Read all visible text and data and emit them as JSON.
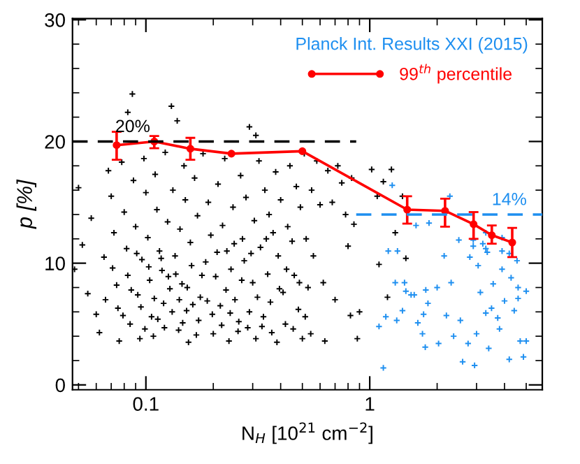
{
  "chart_data": {
    "type": "scatter",
    "xlabel": "N$_{H}$ [10$^{21}$ cm$^{−2}$]",
    "ylabel": "p [%]",
    "log": "x",
    "xlim": [
      0.047,
      5.9
    ],
    "ylim": [
      -0.4,
      30.1
    ],
    "xticks": [
      0.1,
      1
    ],
    "yticks": [
      0,
      10,
      20,
      30
    ],
    "grid": false,
    "legend": "top right",
    "marker": "cross",
    "annotations": [
      "20%",
      "14%"
    ],
    "series": [
      {
        "color": "#000000",
        "x": [
          0.05,
          0.052,
          0.048,
          0.055,
          0.057,
          0.06,
          0.062,
          0.065,
          0.068,
          0.07,
          0.072,
          0.074,
          0.075,
          0.076,
          0.078,
          0.08,
          0.082,
          0.083,
          0.085,
          0.087,
          0.083,
          0.088,
          0.09,
          0.092,
          0.094,
          0.096,
          0.098,
          0.1,
          0.102,
          0.104,
          0.106,
          0.108,
          0.11,
          0.112,
          0.115,
          0.118,
          0.12,
          0.122,
          0.125,
          0.128,
          0.13,
          0.132,
          0.135,
          0.138,
          0.14,
          0.142,
          0.145,
          0.148,
          0.15,
          0.152,
          0.155,
          0.158,
          0.16,
          0.165,
          0.17,
          0.172,
          0.175,
          0.18,
          0.185,
          0.19,
          0.195,
          0.2,
          0.205,
          0.21,
          0.215,
          0.22,
          0.225,
          0.23,
          0.235,
          0.24,
          0.245,
          0.25,
          0.26,
          0.265,
          0.27,
          0.275,
          0.28,
          0.29,
          0.29,
          0.3,
          0.305,
          0.31,
          0.31,
          0.32,
          0.325,
          0.33,
          0.34,
          0.35,
          0.355,
          0.36,
          0.37,
          0.38,
          0.385,
          0.39,
          0.4,
          0.41,
          0.42,
          0.43,
          0.44,
          0.45,
          0.46,
          0.47,
          0.48,
          0.49,
          0.5,
          0.51,
          0.52,
          0.53,
          0.55,
          0.56,
          0.58,
          0.6,
          0.62,
          0.63,
          0.65,
          0.68,
          0.7,
          0.72,
          0.75,
          0.78,
          0.8,
          0.82,
          0.83,
          0.85,
          0.88,
          0.9,
          1.02,
          1.08,
          1.1,
          1.15,
          1.2,
          1.25,
          1.3,
          1.4,
          1.45,
          0.066,
          0.071,
          0.079,
          0.086,
          0.091,
          0.095,
          0.099,
          0.103,
          0.109,
          0.113,
          0.117,
          0.121,
          0.126,
          0.131,
          0.136,
          0.141,
          0.146,
          0.153,
          0.162,
          0.168,
          0.178,
          0.188,
          0.198,
          0.208,
          0.218,
          0.228,
          0.238,
          0.248,
          0.258,
          0.268,
          0.285,
          0.295,
          0.315,
          0.335,
          0.345,
          0.365,
          0.395,
          0.425,
          0.455,
          0.485,
          0.515,
          0.545
        ],
        "values": [
          16.2,
          11.5,
          9.5,
          7.5,
          13.7,
          5.8,
          4.3,
          10.5,
          17.6,
          15.5,
          12.5,
          8.2,
          6.3,
          3.6,
          18.3,
          14.2,
          11.2,
          9.0,
          5.0,
          23.9,
          22.4,
          16.8,
          13.0,
          7.4,
          3.8,
          10.3,
          18.6,
          15.8,
          12.1,
          8.6,
          5.6,
          4.0,
          17.3,
          14.4,
          11.0,
          9.4,
          6.7,
          19.1,
          13.4,
          7.9,
          22.9,
          16.0,
          10.6,
          21.7,
          4.5,
          12.8,
          8.3,
          18.0,
          15.2,
          6.1,
          3.5,
          11.7,
          9.8,
          17.0,
          13.9,
          5.3,
          7.2,
          19.0,
          10.1,
          15.0,
          12.3,
          4.2,
          8.9,
          16.5,
          6.5,
          13.1,
          18.6,
          11.0,
          3.6,
          9.5,
          14.6,
          7.0,
          5.2,
          17.2,
          12.0,
          10.2,
          15.4,
          21.2,
          6.0,
          8.4,
          13.5,
          20.5,
          3.8,
          18.4,
          11.3,
          4.8,
          16.0,
          9.1,
          14.0,
          6.8,
          12.5,
          17.5,
          3.5,
          10.6,
          15.2,
          7.6,
          5.0,
          13.0,
          18.0,
          11.8,
          9.0,
          16.3,
          6.2,
          14.6,
          3.8,
          19.0,
          12.0,
          8.0,
          16.0,
          10.6,
          18.4,
          14.8,
          8.4,
          3.6,
          17.6,
          15.0,
          7.0,
          18.0,
          16.6,
          14.0,
          11.4,
          5.7,
          17.0,
          13.2,
          3.8,
          6.0,
          17.7,
          15.5,
          9.9,
          16.7,
          7.2,
          17.7,
          12.5,
          15.5,
          10.4,
          7.0,
          9.6,
          5.7,
          7.8,
          10.8,
          6.4,
          4.6,
          9.7,
          7.1,
          5.4,
          10.4,
          4.7,
          8.9,
          6.0,
          9.1,
          7.0,
          5.1,
          8.0,
          6.6,
          4.1,
          9.0,
          6.9,
          5.8,
          10.9,
          4.9,
          7.8,
          5.9,
          11.6,
          4.4,
          8.6,
          4.7,
          10.8,
          7.2,
          5.6,
          12.0,
          4.3,
          7.9,
          9.5,
          4.6,
          8.4,
          5.6,
          4.2
        ]
      },
      {
        "name": "Planck Int. Results XXI (2015)",
        "color": "#1e8ff0",
        "x": [
          1.21,
          1.33,
          1.43,
          1.3,
          1.1,
          1.18,
          1.32,
          1.4,
          1.45,
          1.53,
          1.58,
          1.64,
          1.72,
          1.77,
          1.74,
          1.82,
          1.78,
          2.0,
          2.03,
          2.15,
          2.2,
          2.31,
          2.37,
          2.54,
          2.6,
          2.75,
          2.8,
          2.9,
          2.94,
          3.0,
          3.05,
          3.12,
          3.3,
          3.35,
          3.4,
          3.5,
          3.56,
          3.73,
          3.8,
          4.0,
          4.2,
          4.28,
          4.42,
          4.55,
          4.6,
          4.7,
          4.86,
          5.0,
          5.0,
          4.6,
          1.15,
          1.26,
          2.28,
          1.61,
          1.84,
          2.5,
          3.3,
          2.9,
          3.9,
          3.2,
          3.3,
          3.9,
          4.2,
          3.9
        ],
        "values": [
          11.0,
          11.0,
          8.4,
          8.4,
          4.8,
          5.6,
          5.3,
          6.1,
          7.7,
          7.4,
          7.4,
          5.1,
          4.2,
          3.1,
          5.8,
          6.7,
          7.8,
          8.0,
          3.4,
          10.6,
          5.7,
          8.4,
          4.0,
          5.3,
          1.9,
          3.4,
          10.5,
          11.4,
          1.6,
          4.2,
          9.8,
          7.6,
          5.9,
          10.9,
          3.0,
          6.3,
          8.3,
          5.5,
          4.6,
          6.9,
          2.1,
          8.8,
          6.1,
          10.2,
          8.0,
          3.6,
          2.3,
          7.7,
          3.6,
          7.1,
          1.4,
          16.4,
          15.5,
          13.1,
          13.3,
          11.9,
          12.5,
          11.9,
          12.1,
          11.6,
          11.2,
          11.0,
          10.8,
          9.5
        ]
      },
      {
        "type": "line",
        "name": "99$^{th}$ percentile",
        "color": "#ff0000",
        "marker": "circle",
        "x": [
          0.074,
          0.109,
          0.158,
          0.241,
          0.5,
          1.47,
          2.17,
          2.91,
          3.51,
          4.33
        ],
        "values": [
          19.7,
          20.0,
          19.4,
          19.0,
          19.2,
          14.4,
          14.3,
          13.2,
          12.3,
          11.7
        ],
        "errors": [
          [
            18.5,
            20.8
          ],
          [
            19.45,
            20.45
          ],
          [
            18.5,
            20.3
          ],
          null,
          null,
          [
            13.25,
            15.5
          ],
          [
            13.0,
            15.3
          ],
          [
            12.0,
            14.2
          ],
          [
            11.6,
            13.1
          ],
          [
            10.5,
            12.9
          ]
        ]
      },
      {
        "type": "line",
        "color": "#000000",
        "line_style": "dashed",
        "marker": "none",
        "x": [
          0.047,
          0.87
        ],
        "values": [
          20,
          20
        ]
      },
      {
        "type": "line",
        "color": "#1e8ff0",
        "line_style": "dashed",
        "marker": "none",
        "x": [
          0.87,
          5.9
        ],
        "values": [
          14,
          14
        ]
      }
    ]
  }
}
